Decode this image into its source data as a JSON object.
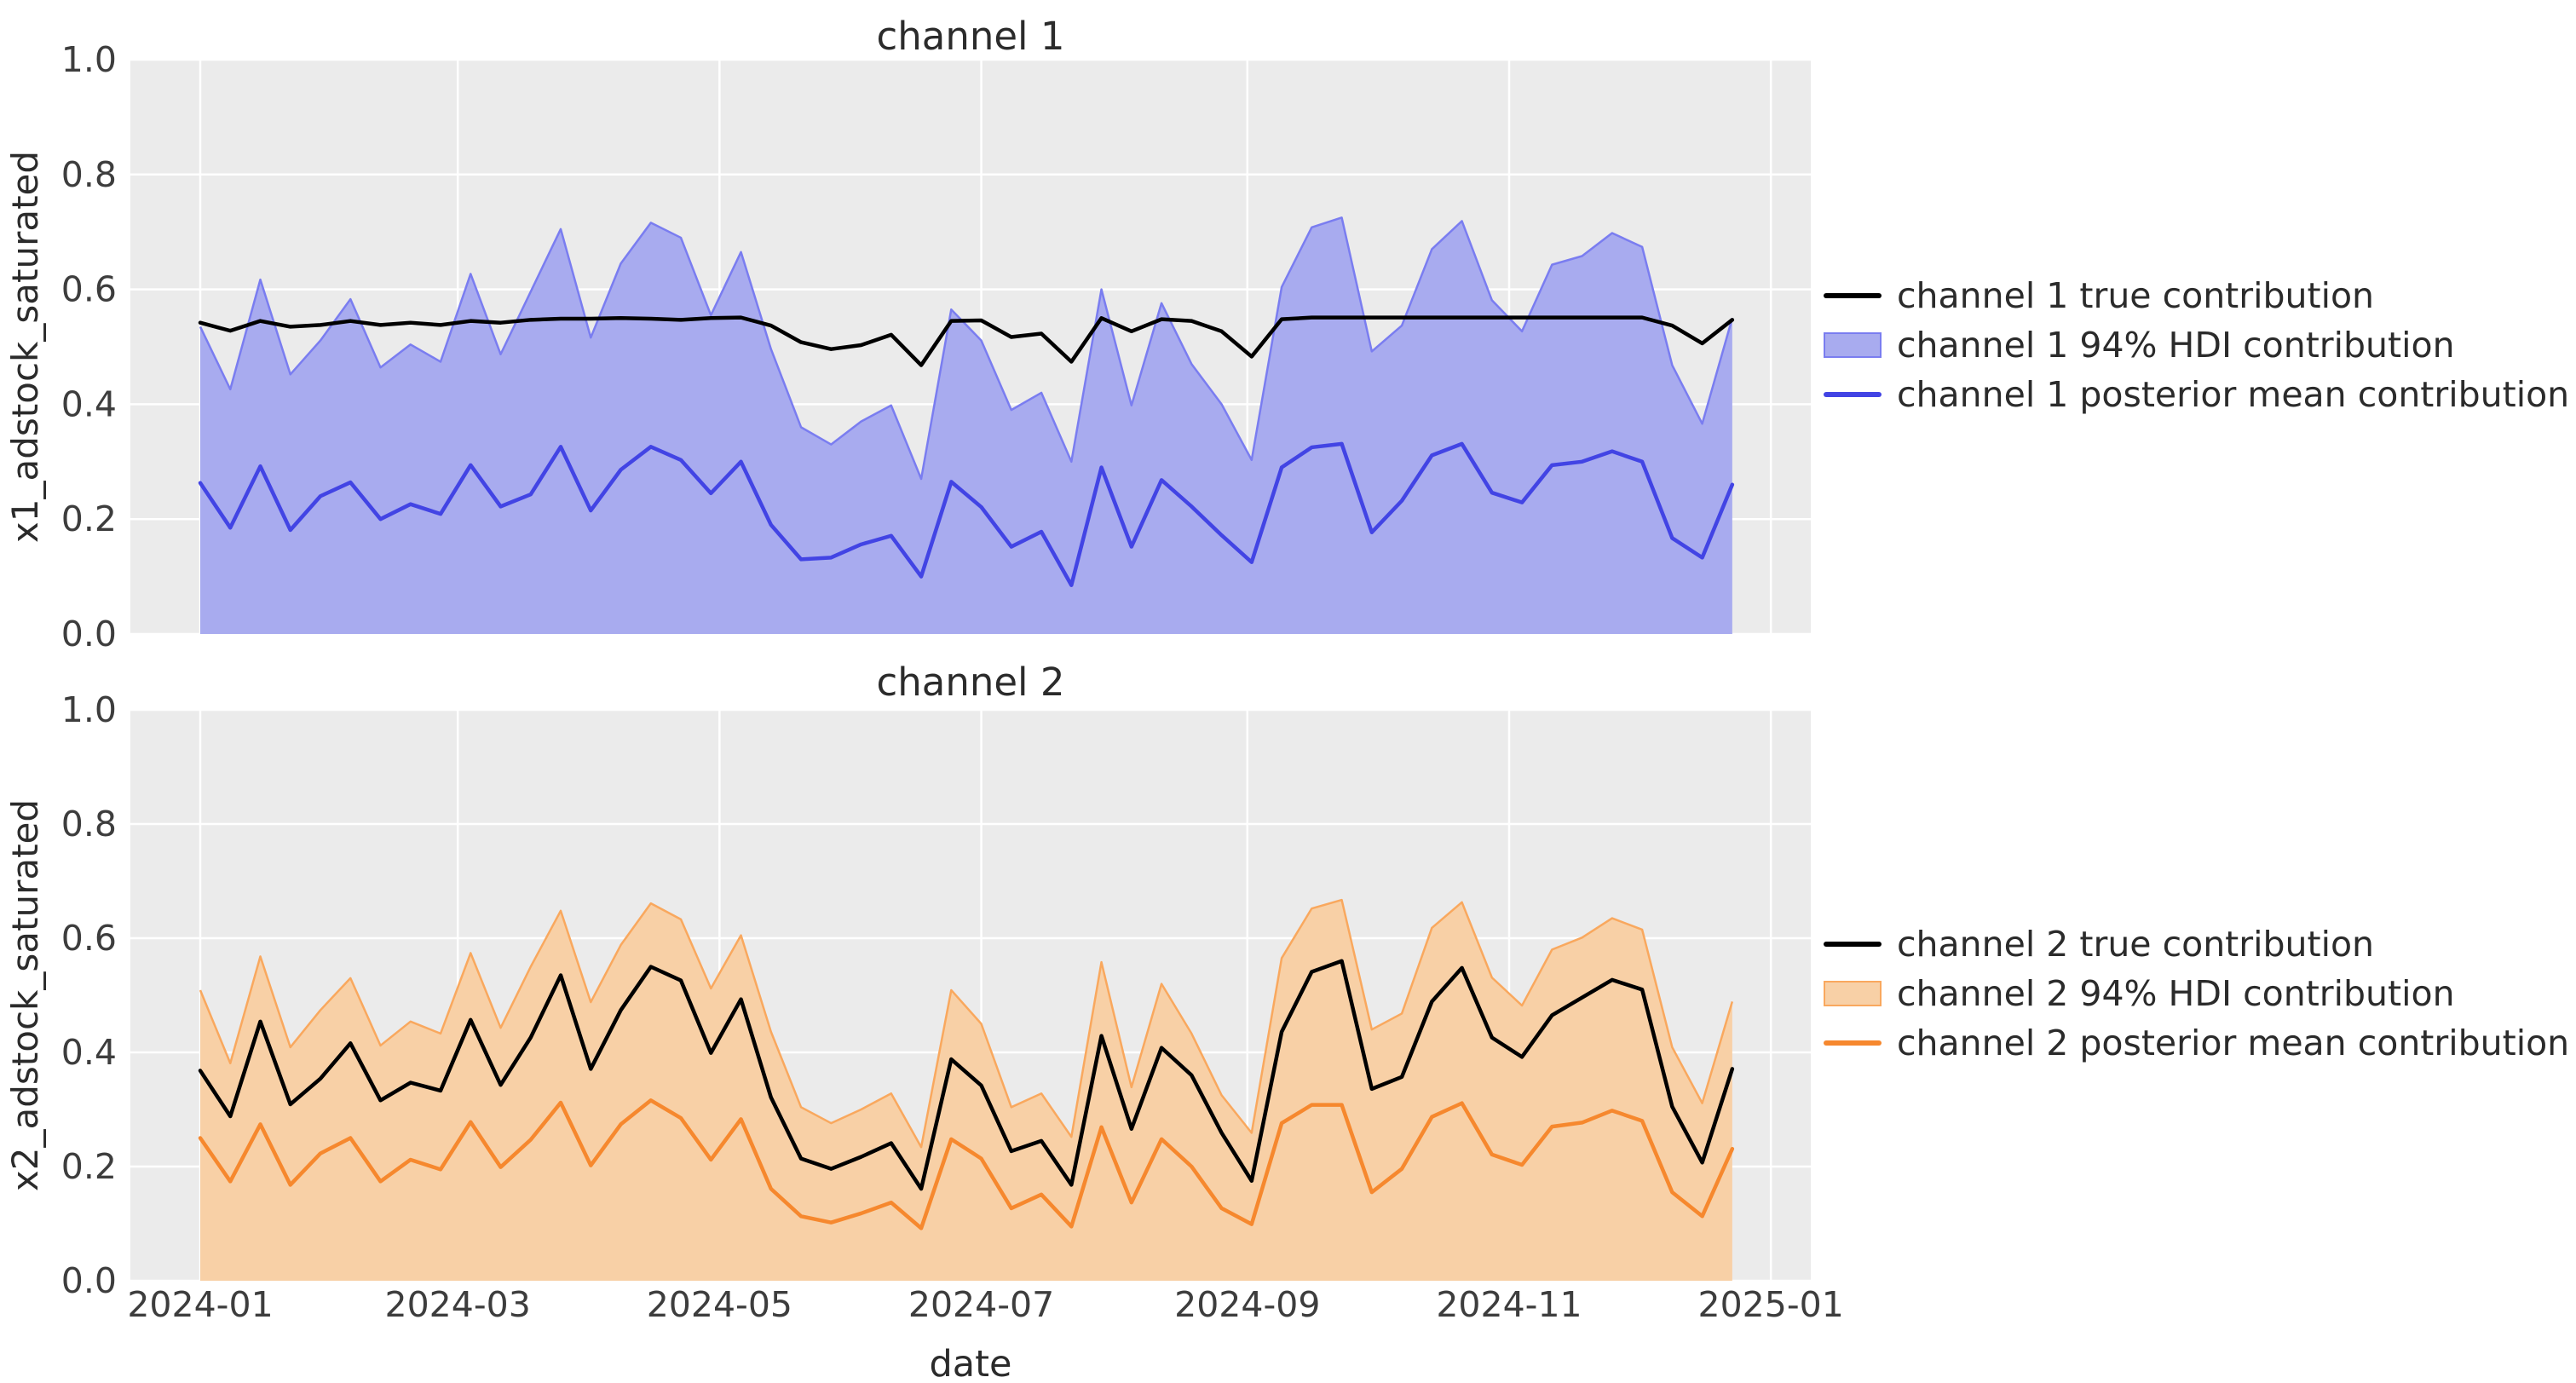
{
  "figure": {
    "background": "#ffffff",
    "plot_background": "#ebebeb",
    "grid_color": "#ffffff",
    "title_color": "#2b2b2b",
    "tick_color": "#3d3d3d"
  },
  "chart_data": [
    {
      "type": "line",
      "title": "channel 1",
      "xlabel": "date",
      "ylabel": "x1_adstock_saturated",
      "ylim": [
        0.0,
        1.0
      ],
      "grid": true,
      "legend_position": "center right, outside axes",
      "y_ticks": [
        {
          "label": "1.0",
          "value": 1.0
        },
        {
          "label": "0.8",
          "value": 0.8
        },
        {
          "label": "0.6",
          "value": 0.6
        },
        {
          "label": "0.4",
          "value": 0.4
        },
        {
          "label": "0.2",
          "value": 0.2
        },
        {
          "label": "0.0",
          "value": 0.0
        }
      ],
      "x_ticks": [
        {
          "label": "2024-01",
          "date": "2024-01-01"
        },
        {
          "label": "2024-03",
          "date": "2024-03-01"
        },
        {
          "label": "2024-05",
          "date": "2024-05-01"
        },
        {
          "label": "2024-07",
          "date": "2024-07-01"
        },
        {
          "label": "2024-09",
          "date": "2024-09-01"
        },
        {
          "label": "2024-11",
          "date": "2024-11-01"
        },
        {
          "label": "2025-01",
          "date": "2025-01-01"
        }
      ],
      "x": [
        "2024-01-01",
        "2024-01-08",
        "2024-01-15",
        "2024-01-22",
        "2024-01-29",
        "2024-02-05",
        "2024-02-12",
        "2024-02-19",
        "2024-02-26",
        "2024-03-04",
        "2024-03-11",
        "2024-03-18",
        "2024-03-25",
        "2024-04-01",
        "2024-04-08",
        "2024-04-15",
        "2024-04-22",
        "2024-04-29",
        "2024-05-06",
        "2024-05-13",
        "2024-05-20",
        "2024-05-27",
        "2024-06-03",
        "2024-06-10",
        "2024-06-17",
        "2024-06-24",
        "2024-07-01",
        "2024-07-08",
        "2024-07-15",
        "2024-07-22",
        "2024-07-29",
        "2024-08-05",
        "2024-08-12",
        "2024-08-19",
        "2024-08-26",
        "2024-09-02",
        "2024-09-09",
        "2024-09-16",
        "2024-09-23",
        "2024-09-30",
        "2024-10-07",
        "2024-10-14",
        "2024-10-21",
        "2024-10-28",
        "2024-11-04",
        "2024-11-11",
        "2024-11-18",
        "2024-11-25",
        "2024-12-02",
        "2024-12-09",
        "2024-12-16",
        "2024-12-23"
      ],
      "series": [
        {
          "name": "channel 1 true contribution",
          "kind": "line",
          "color": "#000000",
          "values": [
            0.542,
            0.528,
            0.545,
            0.535,
            0.538,
            0.545,
            0.538,
            0.542,
            0.538,
            0.545,
            0.542,
            0.547,
            0.549,
            0.549,
            0.55,
            0.549,
            0.547,
            0.55,
            0.551,
            0.537,
            0.508,
            0.496,
            0.503,
            0.521,
            0.468,
            0.545,
            0.546,
            0.517,
            0.523,
            0.474,
            0.55,
            0.527,
            0.548,
            0.545,
            0.527,
            0.483,
            0.548,
            0.551,
            0.551,
            0.551,
            0.551,
            0.551,
            0.551,
            0.551,
            0.551,
            0.551,
            0.551,
            0.551,
            0.551,
            0.537,
            0.506,
            0.547
          ]
        },
        {
          "name": "channel 1 94% HDI contribution",
          "kind": "band",
          "fill_color": "#a8abef",
          "edge_color": "#7a7df0",
          "lower": 0.0,
          "upper": [
            0.535,
            0.426,
            0.617,
            0.452,
            0.511,
            0.583,
            0.464,
            0.504,
            0.474,
            0.627,
            0.487,
            0.596,
            0.705,
            0.516,
            0.645,
            0.716,
            0.69,
            0.555,
            0.665,
            0.496,
            0.36,
            0.33,
            0.37,
            0.398,
            0.27,
            0.565,
            0.511,
            0.39,
            0.42,
            0.3,
            0.6,
            0.398,
            0.576,
            0.47,
            0.4,
            0.303,
            0.604,
            0.708,
            0.725,
            0.492,
            0.537,
            0.67,
            0.719,
            0.581,
            0.527,
            0.643,
            0.658,
            0.698,
            0.674,
            0.468,
            0.366,
            0.55
          ]
        },
        {
          "name": "channel 1 posterior mean contribution",
          "kind": "line",
          "color": "#4244e4",
          "values": [
            0.263,
            0.185,
            0.292,
            0.181,
            0.24,
            0.264,
            0.2,
            0.226,
            0.209,
            0.294,
            0.222,
            0.243,
            0.326,
            0.215,
            0.286,
            0.326,
            0.303,
            0.245,
            0.3,
            0.19,
            0.13,
            0.133,
            0.156,
            0.171,
            0.1,
            0.265,
            0.221,
            0.152,
            0.178,
            0.085,
            0.29,
            0.152,
            0.268,
            0.222,
            0.172,
            0.125,
            0.29,
            0.325,
            0.331,
            0.177,
            0.232,
            0.311,
            0.331,
            0.246,
            0.229,
            0.294,
            0.3,
            0.318,
            0.3,
            0.167,
            0.133,
            0.26
          ]
        }
      ]
    },
    {
      "type": "line",
      "title": "channel 2",
      "xlabel": "date",
      "ylabel": "x2_adstock_saturated",
      "ylim": [
        0.0,
        1.0
      ],
      "grid": true,
      "legend_position": "center right, outside axes",
      "y_ticks": [
        {
          "label": "1.0",
          "value": 1.0
        },
        {
          "label": "0.8",
          "value": 0.8
        },
        {
          "label": "0.6",
          "value": 0.6
        },
        {
          "label": "0.4",
          "value": 0.4
        },
        {
          "label": "0.2",
          "value": 0.2
        },
        {
          "label": "0.0",
          "value": 0.0
        }
      ],
      "x_ticks": [
        {
          "label": "2024-01",
          "date": "2024-01-01"
        },
        {
          "label": "2024-03",
          "date": "2024-03-01"
        },
        {
          "label": "2024-05",
          "date": "2024-05-01"
        },
        {
          "label": "2024-07",
          "date": "2024-07-01"
        },
        {
          "label": "2024-09",
          "date": "2024-09-01"
        },
        {
          "label": "2024-11",
          "date": "2024-11-01"
        },
        {
          "label": "2025-01",
          "date": "2025-01-01"
        }
      ],
      "x": [
        "2024-01-01",
        "2024-01-08",
        "2024-01-15",
        "2024-01-22",
        "2024-01-29",
        "2024-02-05",
        "2024-02-12",
        "2024-02-19",
        "2024-02-26",
        "2024-03-04",
        "2024-03-11",
        "2024-03-18",
        "2024-03-25",
        "2024-04-01",
        "2024-04-08",
        "2024-04-15",
        "2024-04-22",
        "2024-04-29",
        "2024-05-06",
        "2024-05-13",
        "2024-05-20",
        "2024-05-27",
        "2024-06-03",
        "2024-06-10",
        "2024-06-17",
        "2024-06-24",
        "2024-07-01",
        "2024-07-08",
        "2024-07-15",
        "2024-07-22",
        "2024-07-29",
        "2024-08-05",
        "2024-08-12",
        "2024-08-19",
        "2024-08-26",
        "2024-09-02",
        "2024-09-09",
        "2024-09-16",
        "2024-09-23",
        "2024-09-30",
        "2024-10-07",
        "2024-10-14",
        "2024-10-21",
        "2024-10-28",
        "2024-11-04",
        "2024-11-11",
        "2024-11-18",
        "2024-11-25",
        "2024-12-02",
        "2024-12-09",
        "2024-12-16",
        "2024-12-23"
      ],
      "series": [
        {
          "name": "channel 2 true contribution",
          "kind": "line",
          "color": "#000000",
          "values": [
            0.368,
            0.288,
            0.454,
            0.309,
            0.354,
            0.416,
            0.316,
            0.347,
            0.333,
            0.457,
            0.343,
            0.426,
            0.535,
            0.371,
            0.474,
            0.55,
            0.526,
            0.399,
            0.493,
            0.321,
            0.214,
            0.196,
            0.217,
            0.241,
            0.161,
            0.388,
            0.342,
            0.227,
            0.245,
            0.168,
            0.429,
            0.266,
            0.408,
            0.36,
            0.259,
            0.175,
            0.436,
            0.541,
            0.56,
            0.336,
            0.357,
            0.489,
            0.548,
            0.426,
            0.392,
            0.465,
            0.496,
            0.527,
            0.51,
            0.305,
            0.207,
            0.371
          ]
        },
        {
          "name": "channel 2 94% HDI contribution",
          "kind": "band",
          "fill_color": "#f8d0a6",
          "edge_color": "#f9a85e",
          "lower": 0.0,
          "upper": [
            0.509,
            0.381,
            0.568,
            0.409,
            0.474,
            0.53,
            0.412,
            0.454,
            0.433,
            0.574,
            0.443,
            0.55,
            0.648,
            0.488,
            0.588,
            0.661,
            0.633,
            0.512,
            0.605,
            0.436,
            0.304,
            0.276,
            0.3,
            0.328,
            0.234,
            0.509,
            0.45,
            0.304,
            0.328,
            0.252,
            0.558,
            0.339,
            0.52,
            0.433,
            0.325,
            0.259,
            0.565,
            0.652,
            0.667,
            0.44,
            0.468,
            0.618,
            0.663,
            0.531,
            0.482,
            0.58,
            0.601,
            0.635,
            0.615,
            0.409,
            0.311,
            0.489
          ]
        },
        {
          "name": "channel 2 posterior mean contribution",
          "kind": "line",
          "color": "#f6882e",
          "values": [
            0.25,
            0.174,
            0.274,
            0.168,
            0.223,
            0.25,
            0.174,
            0.212,
            0.195,
            0.278,
            0.199,
            0.247,
            0.312,
            0.202,
            0.274,
            0.316,
            0.285,
            0.212,
            0.283,
            0.161,
            0.113,
            0.102,
            0.118,
            0.137,
            0.092,
            0.248,
            0.214,
            0.127,
            0.151,
            0.095,
            0.269,
            0.137,
            0.248,
            0.2,
            0.127,
            0.099,
            0.276,
            0.308,
            0.308,
            0.155,
            0.196,
            0.287,
            0.311,
            0.221,
            0.203,
            0.27,
            0.277,
            0.298,
            0.28,
            0.155,
            0.113,
            0.231
          ]
        }
      ]
    }
  ]
}
